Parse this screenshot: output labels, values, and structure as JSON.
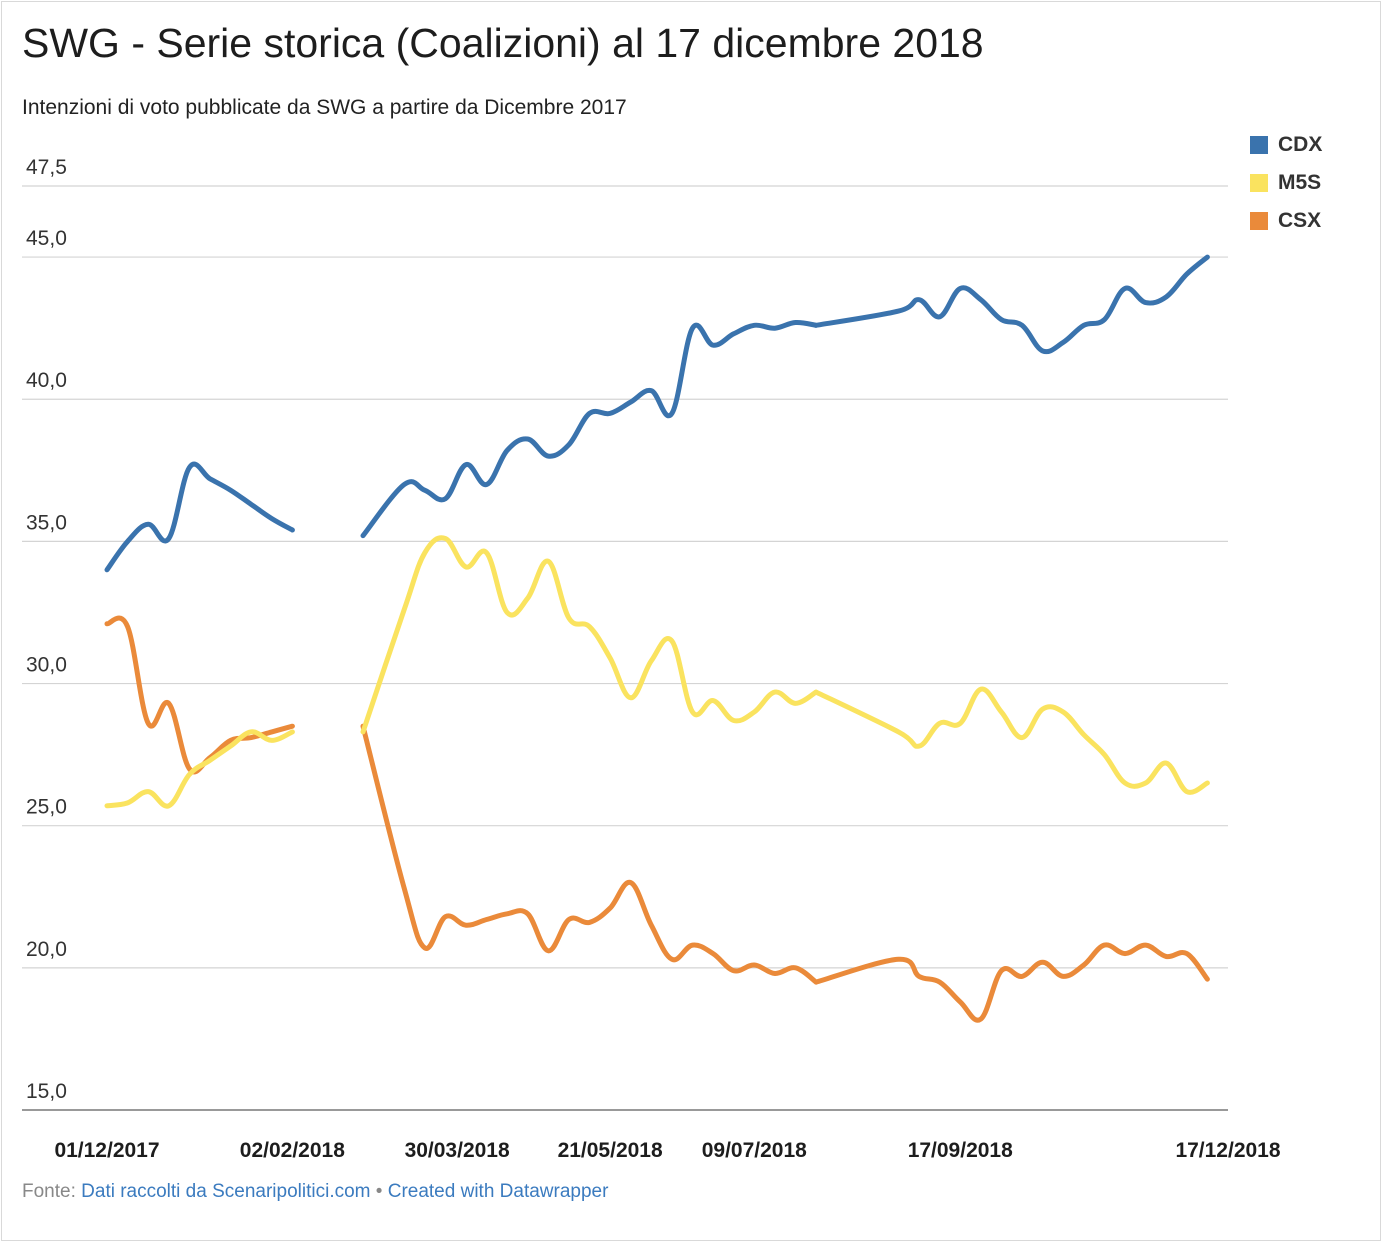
{
  "title": "SWG - Serie storica (Coalizioni) al 17 dicembre 2018",
  "subtitle": "Intenzioni di voto pubblicate da SWG a partire da Dicembre 2017",
  "footer": {
    "prefix": "Fonte:",
    "source_link": "Dati raccolti da Scenaripolitici.com",
    "separator": "•",
    "credit_link": "Created with Datawrapper"
  },
  "colors": {
    "CDX": "#3a73ad",
    "M5S": "#fae35f",
    "CSX": "#ea8a3a",
    "grid": "#d4d4d4"
  },
  "chart_data": {
    "type": "line",
    "ylim": [
      15,
      47.5
    ],
    "y_ticks": [
      "47,5",
      "45,0",
      "40,0",
      "35,0",
      "30,0",
      "25,0",
      "20,0",
      "15,0"
    ],
    "y_tick_values": [
      47.5,
      45,
      40,
      35,
      30,
      25,
      20,
      15
    ],
    "x_ticks": [
      "01/12/2017",
      "02/02/2018",
      "30/03/2018",
      "21/05/2018",
      "09/07/2018",
      "17/09/2018",
      "17/12/2018"
    ],
    "x_tick_dates": [
      "2017-12-01",
      "2018-02-02",
      "2018-03-30",
      "2018-05-21",
      "2018-07-09",
      "2018-09-17",
      "2018-12-17"
    ],
    "x_range": [
      "2017-12-01",
      "2018-12-17"
    ],
    "gaps": [
      [
        "2018-02-26",
        "2018-03-12"
      ],
      [
        "2018-07-30",
        "2018-08-27"
      ]
    ],
    "legend_position": "top-right",
    "grid": true,
    "x": [
      "2017-12-01",
      "2017-12-08",
      "2017-12-15",
      "2017-12-22",
      "2017-12-29",
      "2018-01-05",
      "2018-01-12",
      "2018-01-19",
      "2018-01-26",
      "2018-02-02",
      "2018-02-09",
      "2018-02-16",
      "2018-02-26",
      "2018-03-12",
      "2018-03-19",
      "2018-03-26",
      "2018-04-02",
      "2018-04-09",
      "2018-04-16",
      "2018-04-23",
      "2018-04-30",
      "2018-05-07",
      "2018-05-14",
      "2018-05-21",
      "2018-05-28",
      "2018-06-04",
      "2018-06-11",
      "2018-06-18",
      "2018-06-25",
      "2018-07-02",
      "2018-07-09",
      "2018-07-16",
      "2018-07-23",
      "2018-07-30",
      "2018-08-27",
      "2018-09-03",
      "2018-09-10",
      "2018-09-17",
      "2018-09-24",
      "2018-10-01",
      "2018-10-08",
      "2018-10-15",
      "2018-10-22",
      "2018-10-29",
      "2018-11-05",
      "2018-11-12",
      "2018-11-19",
      "2018-11-26",
      "2018-12-03",
      "2018-12-10",
      "2018-12-17"
    ],
    "series": [
      {
        "name": "CDX",
        "color": "#3a73ad",
        "values": [
          34.0,
          35.0,
          35.6,
          35.1,
          37.6,
          37.2,
          36.8,
          36.3,
          35.8,
          35.4,
          null,
          null,
          35.2,
          37.0,
          36.8,
          36.5,
          37.7,
          37.0,
          38.2,
          38.6,
          38.0,
          38.4,
          39.5,
          39.5,
          39.9,
          40.3,
          39.5,
          42.5,
          41.9,
          42.3,
          42.6,
          42.5,
          42.7,
          42.6,
          43.1,
          43.5,
          42.9,
          43.9,
          43.5,
          42.8,
          42.6,
          41.7,
          42.0,
          42.6,
          42.8,
          43.9,
          43.4,
          43.6,
          44.4,
          45.0,
          null
        ]
      },
      {
        "name": "M5S",
        "color": "#fae35f",
        "values": [
          25.7,
          25.8,
          26.2,
          25.7,
          26.8,
          27.3,
          27.8,
          28.3,
          28.0,
          28.3,
          null,
          null,
          28.3,
          32.6,
          34.6,
          35.1,
          34.1,
          34.6,
          32.5,
          33.0,
          34.3,
          32.3,
          32.0,
          30.9,
          29.5,
          30.8,
          31.5,
          29.0,
          29.4,
          28.7,
          29.0,
          29.7,
          29.3,
          29.7,
          28.3,
          27.8,
          28.6,
          28.6,
          29.8,
          29.0,
          28.1,
          29.1,
          29.0,
          28.2,
          27.5,
          26.5,
          26.5,
          27.2,
          26.2,
          26.5,
          null
        ]
      },
      {
        "name": "CSX",
        "color": "#ea8a3a",
        "values": [
          32.1,
          32.0,
          28.6,
          29.3,
          27.0,
          27.4,
          28.0,
          28.1,
          28.3,
          28.5,
          null,
          null,
          28.5,
          22.8,
          20.7,
          21.8,
          21.5,
          21.7,
          21.9,
          21.9,
          20.6,
          21.7,
          21.6,
          22.1,
          23.0,
          21.5,
          20.3,
          20.8,
          20.5,
          19.9,
          20.1,
          19.8,
          20.0,
          19.5,
          20.3,
          19.7,
          19.5,
          18.8,
          18.2,
          19.9,
          19.7,
          20.2,
          19.7,
          20.1,
          20.8,
          20.5,
          20.8,
          20.4,
          20.5,
          19.6,
          null
        ]
      }
    ]
  }
}
